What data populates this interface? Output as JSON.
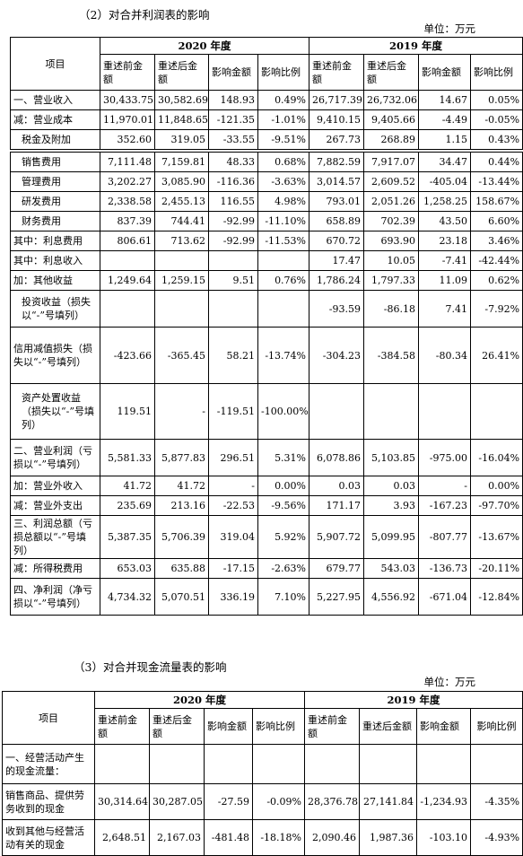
{
  "section1": {
    "heading": "（2）对合并利润表的影响",
    "unit": "单位：万元",
    "header": {
      "item": "项目",
      "year2020": "2020 年度",
      "year2019": "2019 年度",
      "cols": [
        "重述前金额",
        "重述后金额",
        "影响金额",
        "影响比例"
      ]
    },
    "rows": [
      {
        "label": "一、营业收入",
        "v": [
          "30,433.75",
          "30,582.69",
          "148.93",
          "0.49%",
          "26,717.39",
          "26,732.06",
          "14.67",
          "0.05%"
        ]
      },
      {
        "label": "减：营业成本",
        "v": [
          "11,970.01",
          "11,848.65",
          "-121.35",
          "-1.01%",
          "9,410.15",
          "9,405.66",
          "-4.49",
          "-0.05%"
        ]
      },
      {
        "label": "税金及附加",
        "v": [
          "352.60",
          "319.05",
          "-33.55",
          "-9.51%",
          "267.73",
          "268.89",
          "1.15",
          "0.43%"
        ]
      },
      {
        "label": "销售费用",
        "v": [
          "7,111.48",
          "7,159.81",
          "48.33",
          "0.68%",
          "7,882.59",
          "7,917.07",
          "34.47",
          "0.44%"
        ]
      },
      {
        "label": "管理费用",
        "v": [
          "3,202.27",
          "3,085.90",
          "-116.36",
          "-3.63%",
          "3,014.57",
          "2,609.52",
          "-405.04",
          "-13.44%"
        ]
      },
      {
        "label": "研发费用",
        "v": [
          "2,338.58",
          "2,455.13",
          "116.55",
          "4.98%",
          "793.01",
          "2,051.26",
          "1,258.25",
          "158.67%"
        ]
      },
      {
        "label": "财务费用",
        "v": [
          "837.39",
          "744.41",
          "-92.99",
          "-11.10%",
          "658.89",
          "702.39",
          "43.50",
          "6.60%"
        ]
      },
      {
        "label": "其中：利息费用",
        "v": [
          "806.61",
          "713.62",
          "-92.99",
          "-11.53%",
          "670.72",
          "693.90",
          "23.18",
          "3.46%"
        ]
      },
      {
        "label": "其中：利息收入",
        "v": [
          "",
          "",
          "",
          "",
          "17.47",
          "10.05",
          "-7.41",
          "-42.44%"
        ]
      },
      {
        "label": "加：其他收益",
        "v": [
          "1,249.64",
          "1,259.15",
          "9.51",
          "0.76%",
          "1,786.24",
          "1,797.33",
          "11.09",
          "0.62%"
        ]
      },
      {
        "label": "投资收益（损失以“-”号填列）",
        "v": [
          "",
          "",
          "",
          "",
          "-93.59",
          "-86.18",
          "7.41",
          "-7.92%"
        ]
      },
      {
        "label": "信用减值损失（损失以“-”号填列）",
        "v": [
          "-423.66",
          "-365.45",
          "58.21",
          "-13.74%",
          "-304.23",
          "-384.58",
          "-80.34",
          "26.41%"
        ]
      },
      {
        "label": "资产处置收益（损失以“-”号填列）",
        "v": [
          "119.51",
          "-",
          "-119.51",
          "-100.00%",
          "",
          "",
          "",
          ""
        ]
      },
      {
        "label": "二、营业利润（亏损以“-”号填列）",
        "v": [
          "5,581.33",
          "5,877.83",
          "296.51",
          "5.31%",
          "6,078.86",
          "5,103.85",
          "-975.00",
          "-16.04%"
        ]
      },
      {
        "label": "加：营业外收入",
        "v": [
          "41.72",
          "41.72",
          "-",
          "0.00%",
          "0.03",
          "0.03",
          "-",
          "0.00%"
        ]
      },
      {
        "label": "减：营业外支出",
        "v": [
          "235.69",
          "213.16",
          "-22.53",
          "-9.56%",
          "171.17",
          "3.93",
          "-167.23",
          "-97.70%"
        ]
      },
      {
        "label": "三、利润总额（亏损总额以“-”号填列）",
        "v": [
          "5,387.35",
          "5,706.39",
          "319.04",
          "5.92%",
          "5,907.72",
          "5,099.95",
          "-807.77",
          "-13.67%"
        ]
      },
      {
        "label": "减：所得税费用",
        "v": [
          "653.03",
          "635.88",
          "-17.15",
          "-2.63%",
          "679.77",
          "543.03",
          "-136.73",
          "-20.11%"
        ]
      },
      {
        "label": "四、净利润（净亏损以“-”号填列）",
        "v": [
          "4,734.32",
          "5,070.51",
          "336.19",
          "7.10%",
          "5,227.95",
          "4,556.92",
          "-671.04",
          "-12.84%"
        ]
      }
    ]
  },
  "section2": {
    "heading": "（3）对合并现金流量表的影响",
    "unit": "单位：万元",
    "header": {
      "item": "项目",
      "year2020": "2020 年度",
      "year2019": "2019 年度",
      "cols": [
        "重述前金额",
        "重述后金额",
        "影响金额",
        "影响比例"
      ]
    },
    "rows": [
      {
        "label": "一、经营活动产生的现金流量：",
        "v": [
          "",
          "",
          "",
          "",
          "",
          "",
          "",
          ""
        ]
      },
      {
        "label": "销售商品、提供劳务收到的现金",
        "v": [
          "30,314.64",
          "30,287.05",
          "-27.59",
          "-0.09%",
          "28,376.78",
          "27,141.84",
          "-1,234.93",
          "-4.35%"
        ]
      },
      {
        "label": "收到其他与经营活动有关的现金",
        "v": [
          "2,648.51",
          "2,167.03",
          "-481.48",
          "-18.18%",
          "2,090.46",
          "1,987.36",
          "-103.10",
          "-4.93%"
        ]
      }
    ]
  }
}
